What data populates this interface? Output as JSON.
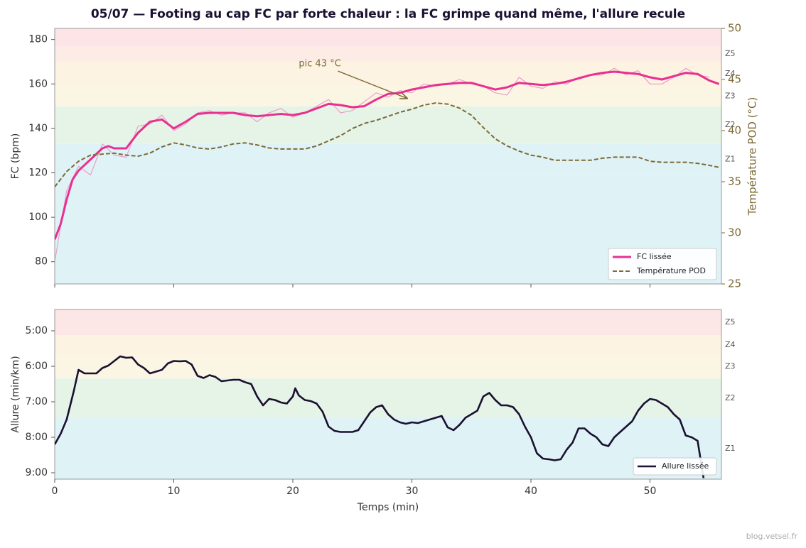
{
  "source": "blog.vetsel.fr",
  "chart_data": [
    {
      "type": "line",
      "title": "05/07 — Footing au cap FC par forte chaleur : la FC grimpe quand même, l'allure recule",
      "ylabel": "FC (bpm)",
      "y2label": "Température POD (°C)",
      "xlim": [
        0,
        56
      ],
      "xticks": [
        0,
        10,
        20,
        30,
        40,
        50
      ],
      "xticklabels": false,
      "ylim": [
        70,
        185
      ],
      "yticks": [
        80,
        100,
        120,
        140,
        160,
        180
      ],
      "y2lim": [
        25,
        50
      ],
      "y2ticks": [
        25,
        30,
        35,
        40,
        45,
        50
      ],
      "bands": [
        {
          "from": 70,
          "to": 119,
          "color": "#dff3f7"
        },
        {
          "from": 119,
          "to": 133,
          "label": "Z1",
          "color": "#dff3f7"
        },
        {
          "from": 133,
          "to": 150,
          "label": "Z2",
          "color": "#e6f4e8"
        },
        {
          "from": 150,
          "to": 159,
          "label": "Z3",
          "color": "#fbf6e3"
        },
        {
          "from": 159,
          "to": 170,
          "label": "Z4",
          "color": "#fdf3e3"
        },
        {
          "from": 170,
          "to": 177,
          "label": "Z5",
          "color": "#fdebe6"
        },
        {
          "from": 177,
          "to": 185,
          "color": "#fde5e7"
        }
      ],
      "legend": "lower right",
      "annotations": [
        {
          "text": "pic 43 °C",
          "x": 29.6,
          "y": 153.5,
          "text_x": 20.5,
          "text_y": 169
        }
      ],
      "series": [
        {
          "color": "#e8a0c8",
          "width": 1.2,
          "x": [
            0,
            1,
            2,
            3,
            4,
            5,
            6,
            7,
            8,
            9,
            10,
            11,
            12,
            13,
            14,
            15,
            16,
            17,
            18,
            19,
            20,
            21,
            22,
            23,
            24,
            25,
            26,
            27,
            28,
            29,
            30,
            31,
            32,
            33,
            34,
            35,
            36,
            37,
            38,
            39,
            40,
            41,
            42,
            43,
            44,
            45,
            46,
            47,
            48,
            49,
            50,
            51,
            52,
            53,
            54,
            55
          ],
          "values": [
            80,
            112,
            123,
            119,
            133,
            128,
            127,
            141,
            142,
            146,
            139,
            142,
            147,
            148,
            146,
            147,
            147,
            143,
            147,
            149,
            145,
            147,
            150,
            153,
            147,
            148,
            152,
            156,
            154,
            157,
            156,
            160,
            159,
            160,
            162,
            160,
            159,
            156,
            155,
            163,
            159,
            158,
            161,
            160,
            163,
            164,
            164,
            167,
            164,
            166,
            160,
            160,
            163,
            167,
            164,
            163
          ]
        },
        {
          "name": "FC lissée",
          "color": "#e8308f",
          "width": 3,
          "x": [
            0,
            0.5,
            1,
            1.5,
            2,
            3,
            4,
            4.5,
            5,
            6,
            7,
            8,
            9,
            10,
            11,
            12,
            13,
            14,
            15,
            16,
            17,
            18,
            19,
            20,
            21,
            22,
            23,
            24,
            25,
            26,
            27,
            28,
            29,
            30,
            31,
            32,
            33,
            34,
            35,
            36,
            37,
            38,
            39,
            40,
            41,
            42,
            43,
            44,
            45,
            46,
            47,
            48,
            49,
            50,
            51,
            52,
            53,
            54,
            55,
            55.8
          ],
          "values": [
            90,
            97,
            108,
            117,
            121,
            126,
            131,
            132,
            131,
            131,
            138,
            143,
            144,
            140,
            143,
            146.5,
            147,
            147,
            147,
            146,
            145.5,
            146,
            146.5,
            146,
            147,
            149,
            151,
            150.5,
            149.5,
            150,
            153,
            155.5,
            156,
            157.5,
            158.5,
            159.5,
            160,
            160.5,
            160.5,
            159,
            157.5,
            158.5,
            160.5,
            160,
            159.5,
            160,
            161,
            162.5,
            164,
            165,
            165.5,
            165,
            164.5,
            163,
            162,
            163.5,
            165,
            164.5,
            161.5,
            160
          ]
        },
        {
          "name": "Température POD",
          "color": "#7d6a35",
          "width": 2,
          "dash": true,
          "axis": "y2",
          "x": [
            0,
            1,
            2,
            3,
            4,
            5,
            6,
            7,
            8,
            9,
            10,
            11,
            12,
            13,
            14,
            15,
            16,
            17,
            18,
            19,
            20,
            21,
            22,
            23,
            24,
            25,
            26,
            27,
            28,
            29,
            30,
            31,
            32,
            33,
            34,
            35,
            36,
            37,
            38,
            39,
            40,
            41,
            42,
            43,
            44,
            45,
            46,
            47,
            48,
            49,
            50,
            51,
            52,
            53,
            54,
            55,
            55.8
          ],
          "values": [
            34.5,
            36,
            37,
            37.6,
            37.7,
            37.8,
            37.6,
            37.5,
            37.8,
            38.4,
            38.8,
            38.6,
            38.3,
            38.2,
            38.4,
            38.7,
            38.8,
            38.6,
            38.3,
            38.2,
            38.2,
            38.2,
            38.5,
            39,
            39.5,
            40.2,
            40.7,
            41,
            41.4,
            41.8,
            42.1,
            42.5,
            42.7,
            42.6,
            42.2,
            41.5,
            40.3,
            39.2,
            38.5,
            38,
            37.6,
            37.4,
            37.1,
            37.1,
            37.1,
            37.1,
            37.3,
            37.4,
            37.4,
            37.4,
            37,
            36.9,
            36.9,
            36.9,
            36.8,
            36.6,
            36.4
          ]
        }
      ]
    },
    {
      "type": "line",
      "ylabel": "Allure (min/km)",
      "xlabel": "Temps (min)",
      "xlim": [
        0,
        56
      ],
      "xticks": [
        0,
        10,
        20,
        30,
        40,
        50
      ],
      "xticklabels": true,
      "ylim": [
        9.18,
        4.4
      ],
      "yticks": [
        {
          "value": 5,
          "label": "5:00"
        },
        {
          "value": 6,
          "label": "6:00"
        },
        {
          "value": 7,
          "label": "7:00"
        },
        {
          "value": 8,
          "label": "8:00"
        },
        {
          "value": 9,
          "label": "9:00"
        }
      ],
      "bands": [
        {
          "from": 7.46,
          "to": 9.18,
          "label": "Z1",
          "color": "#dff3f7"
        },
        {
          "from": 6.34,
          "to": 7.46,
          "label": "Z2",
          "color": "#e6f4e8"
        },
        {
          "from": 5.68,
          "to": 6.34,
          "label": "Z3",
          "color": "#fbf6e3"
        },
        {
          "from": 5.12,
          "to": 5.68,
          "label": "Z4",
          "color": "#fdf3e3"
        },
        {
          "from": 4.4,
          "to": 5.12,
          "label": "Z5",
          "color": "#fde6e6"
        }
      ],
      "legend": "lower right",
      "series": [
        {
          "name": "Allure lissée",
          "color": "#1a1030",
          "width": 2.6,
          "x": [
            0,
            0.5,
            1,
            1.3,
            1.6,
            2,
            2.5,
            3,
            3.5,
            4,
            4.5,
            5,
            5.5,
            6,
            6.5,
            7,
            7.5,
            8,
            8.5,
            9,
            9.5,
            10,
            10.5,
            11,
            11.5,
            12,
            12.5,
            13,
            13.5,
            14,
            14.5,
            15,
            15.5,
            16,
            16.5,
            17,
            17.5,
            18,
            18.5,
            19,
            19.5,
            20,
            20.2,
            20.5,
            21,
            21.5,
            22,
            22.5,
            23,
            23.5,
            24,
            24.5,
            25,
            25.5,
            26,
            26.5,
            27,
            27.5,
            28,
            28.5,
            29,
            29.5,
            30,
            30.5,
            31,
            31.5,
            32,
            32.5,
            33,
            33.5,
            34,
            34.5,
            35,
            35.5,
            36,
            36.5,
            37,
            37.5,
            38,
            38.5,
            39,
            39.5,
            40,
            40.5,
            41,
            41.5,
            42,
            42.5,
            43,
            43.5,
            44,
            44.5,
            45,
            45.5,
            46,
            46.5,
            47,
            47.5,
            48,
            48.5,
            49,
            49.5,
            50,
            50.5,
            51,
            51.5,
            52,
            52.5,
            53,
            53.5,
            54,
            54.5
          ],
          "values": [
            8.2,
            7.9,
            7.5,
            7.1,
            6.7,
            6.1,
            6.2,
            6.2,
            6.2,
            6.05,
            5.98,
            5.85,
            5.72,
            5.76,
            5.75,
            5.95,
            6.05,
            6.2,
            6.15,
            6.1,
            5.92,
            5.85,
            5.86,
            5.85,
            5.95,
            6.27,
            6.33,
            6.25,
            6.3,
            6.42,
            6.4,
            6.38,
            6.38,
            6.45,
            6.5,
            6.85,
            7.1,
            6.92,
            6.95,
            7.02,
            7.05,
            6.85,
            6.62,
            6.82,
            6.95,
            6.98,
            7.05,
            7.28,
            7.7,
            7.82,
            7.85,
            7.85,
            7.85,
            7.8,
            7.55,
            7.3,
            7.15,
            7.1,
            7.35,
            7.5,
            7.58,
            7.62,
            7.58,
            7.6,
            7.55,
            7.5,
            7.45,
            7.4,
            7.72,
            7.8,
            7.65,
            7.45,
            7.35,
            7.25,
            6.85,
            6.75,
            6.95,
            7.1,
            7.1,
            7.15,
            7.35,
            7.7,
            8.0,
            8.45,
            8.6,
            8.62,
            8.65,
            8.62,
            8.35,
            8.15,
            7.75,
            7.75,
            7.9,
            8.0,
            8.2,
            8.25,
            8.0,
            7.85,
            7.7,
            7.55,
            7.25,
            7.05,
            6.92,
            6.95,
            7.05,
            7.15,
            7.35,
            7.5,
            7.95,
            8.0,
            8.1,
            9.15
          ]
        }
      ]
    }
  ]
}
